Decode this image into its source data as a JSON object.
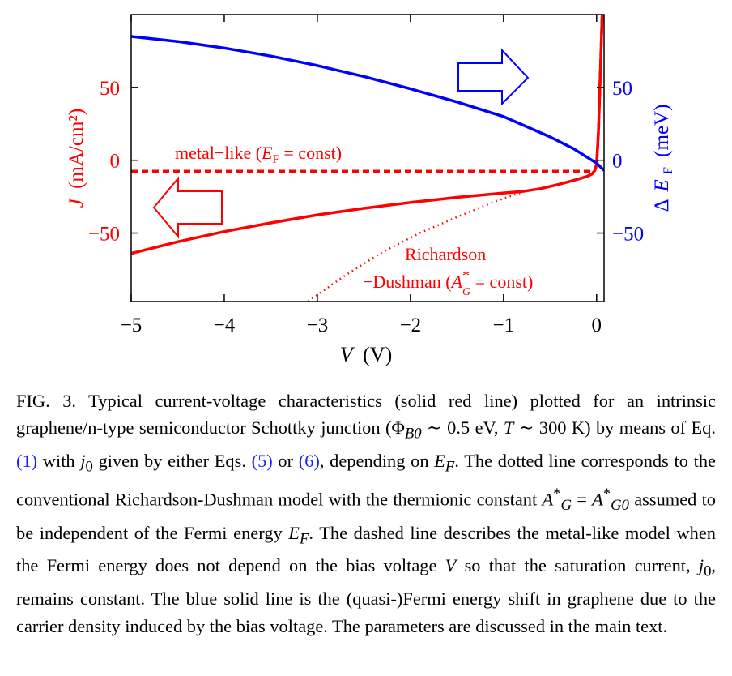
{
  "chart_data": {
    "type": "line",
    "xlabel": "V (V)",
    "ylabel_left": "J (mA/cm²)",
    "ylabel_right": "ΔE_F (meV)",
    "xlim": [
      -5.0,
      0.08
    ],
    "ylim_left": [
      -97,
      100
    ],
    "ylim_right": [
      -97,
      100
    ],
    "x_ticks": [
      -5,
      -4,
      -3,
      -2,
      -1,
      0
    ],
    "x_tick_labels": [
      "−5",
      "−4",
      "−3",
      "−2",
      "−1",
      "0"
    ],
    "y_left_ticks": [
      50,
      0,
      -50
    ],
    "y_left_tick_labels": [
      "50",
      "0",
      "−50"
    ],
    "y_right_ticks": [
      50,
      0,
      -50
    ],
    "y_right_tick_labels": [
      "50",
      "0",
      "−50"
    ],
    "grid": false,
    "series": [
      {
        "axis": "left",
        "color": "#ff0000",
        "style": "solid",
        "x": [
          -5.0,
          -4.5,
          -4.0,
          -3.5,
          -3.0,
          -2.5,
          -2.0,
          -1.5,
          -1.0,
          -0.8,
          -0.6,
          -0.4,
          -0.2,
          -0.1,
          -0.05,
          -0.02,
          0.0,
          0.02,
          0.04,
          0.06
        ],
        "y": [
          -64,
          -56,
          -49,
          -43,
          -37.5,
          -33,
          -29,
          -25.5,
          -22.5,
          -21.5,
          -19.5,
          -16.5,
          -13,
          -11,
          -9.5,
          -7,
          -3,
          20,
          60,
          100
        ]
      },
      {
        "axis": "left",
        "color": "#ff0000",
        "style": "dashed",
        "x": [
          -5.0,
          -0.05,
          -0.02,
          0.0,
          0.02,
          0.04,
          0.06
        ],
        "y": [
          -7.5,
          -7.5,
          -7,
          -3,
          20,
          60,
          100
        ]
      },
      {
        "axis": "left",
        "color": "#ff0000",
        "style": "dotted",
        "x": [
          -3.1,
          -2.7,
          -2.3,
          -1.9,
          -1.5,
          -1.1,
          -0.8
        ],
        "y": [
          -97,
          -79,
          -63,
          -50,
          -39,
          -28.5,
          -22
        ]
      },
      {
        "axis": "right",
        "color": "#0000ff",
        "style": "solid",
        "x": [
          -5.0,
          -4.5,
          -4.0,
          -3.5,
          -3.0,
          -2.5,
          -2.0,
          -1.5,
          -1.0,
          -0.5,
          -0.25,
          -0.1,
          0.0,
          0.08
        ],
        "y": [
          85,
          81.5,
          77,
          71.5,
          65,
          57.5,
          49,
          40,
          30,
          16,
          8,
          2,
          -2,
          -7
        ]
      }
    ],
    "annotations": [
      {
        "text": "metal−like (E_F = const)",
        "x": -3.05,
        "y": 4
      },
      {
        "text": "Richardson",
        "x": -1.5,
        "y": -63
      },
      {
        "text": "−Dushman (A_G^* = const)",
        "x": -1.55,
        "y": -83
      }
    ]
  },
  "labels": {
    "ylabel_left_J": "J",
    "ylabel_left_unit": "(mA/cm²)",
    "ylabel_right_delta": "Δ",
    "ylabel_right_E": "E",
    "ylabel_right_sub": "F",
    "ylabel_right_unit": "(meV)",
    "xlabel_V": "V",
    "xlabel_unit": "(V)",
    "ann_metal_pre": "metal−like (",
    "ann_metal_E": "E",
    "ann_metal_sub": "F",
    "ann_metal_post": " = const)",
    "ann_rich_1": "Richardson",
    "ann_rich_2_pre": "−Dushman (",
    "ann_rich_2_A": "A",
    "ann_rich_2_sup": "*",
    "ann_rich_2_sub": "G",
    "ann_rich_2_post": " = const)"
  },
  "caption": {
    "fig": "FIG. 3.",
    "p1": " Typical current-voltage characteristics (solid red line) plotted for an intrinsic graphene/n-type semiconductor Schottky junction (Φ",
    "p1_sub": "B0",
    "p2": " ∼ 0.5 eV, ",
    "p2_T": "T",
    "p3": " ∼ 300 K) by means of Eq. ",
    "ref1": "(1)",
    "p4": " with ",
    "p4_j": "j",
    "p4_j_sub": "0",
    "p5": " given by either Eqs. ",
    "ref5": "(5)",
    "p6": " or ",
    "ref6": "(6)",
    "p7": ", depending on ",
    "p7_E": "E",
    "p7_E_sub": "F",
    "p8": ". The dotted line corresponds to the conventional Richardson-Dushman model with the thermionic constant ",
    "p8_A": "A",
    "p8_A_sup": "*",
    "p8_A_sub": "G",
    "p9": " = ",
    "p9_A": "A",
    "p9_A_sup": "*",
    "p9_A_sub": "G0",
    "p10": " assumed to be independent of the Fermi energy ",
    "p10_E": "E",
    "p10_E_sub": "F",
    "p11": ". The dashed line describes the metal-like model when the Fermi energy does not depend on the bias voltage ",
    "p11_V": "V",
    "p12": " so that the saturation current, ",
    "p12_j": "j",
    "p12_j_sub": "0",
    "p13": ", remains constant. The blue solid line is the (quasi-)Fermi energy shift in graphene due to the carrier density induced by the bias voltage. The parameters are discussed in the main text."
  }
}
